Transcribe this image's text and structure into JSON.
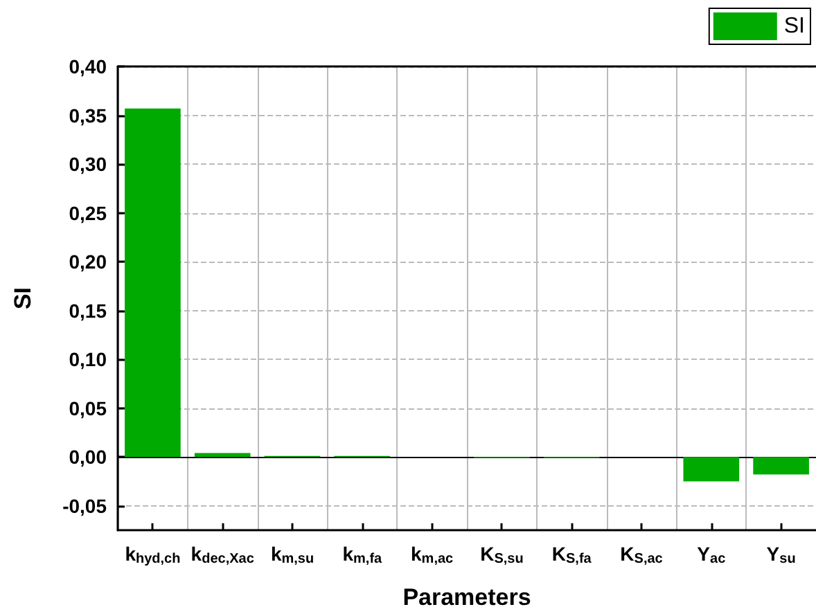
{
  "chart_data": {
    "type": "bar",
    "xlabel": "Parameters",
    "ylabel": "SI",
    "categories": [
      "k$_{hyd,ch}$",
      "k$_{dec,Xac}$",
      "k$_{m,su}$",
      "k$_{m,fa}$",
      "k$_{m,ac}$",
      "K$_{S,su}$",
      "K$_{S,fa}$",
      "K$_{S,ac}$",
      "Y$_{ac}$",
      "Y$_{su}$"
    ],
    "series": [
      {
        "name": "SI",
        "color": "#00aa00",
        "values": [
          0.357,
          0.004,
          0.001,
          0.001,
          0,
          -0.001,
          -0.001,
          0,
          -0.025,
          -0.018
        ]
      }
    ],
    "ylim": [
      -0.075,
      0.4
    ],
    "yticks": [
      {
        "value": -0.05,
        "label": "-0,05"
      },
      {
        "value": 0,
        "label": "0,00"
      },
      {
        "value": 0.05,
        "label": "0,05"
      },
      {
        "value": 0.1,
        "label": "0,10"
      },
      {
        "value": 0.15,
        "label": "0,15"
      },
      {
        "value": 0.2,
        "label": "0,20"
      },
      {
        "value": 0.25,
        "label": "0,25"
      },
      {
        "value": 0.3,
        "label": "0,30"
      },
      {
        "value": 0.35,
        "label": "0,35"
      },
      {
        "value": 0.4,
        "label": "0,40"
      }
    ],
    "ref_lines": [
      {
        "axis": "y",
        "value": 0,
        "color": "#000000"
      }
    ],
    "grid": true,
    "legend": "top right"
  }
}
